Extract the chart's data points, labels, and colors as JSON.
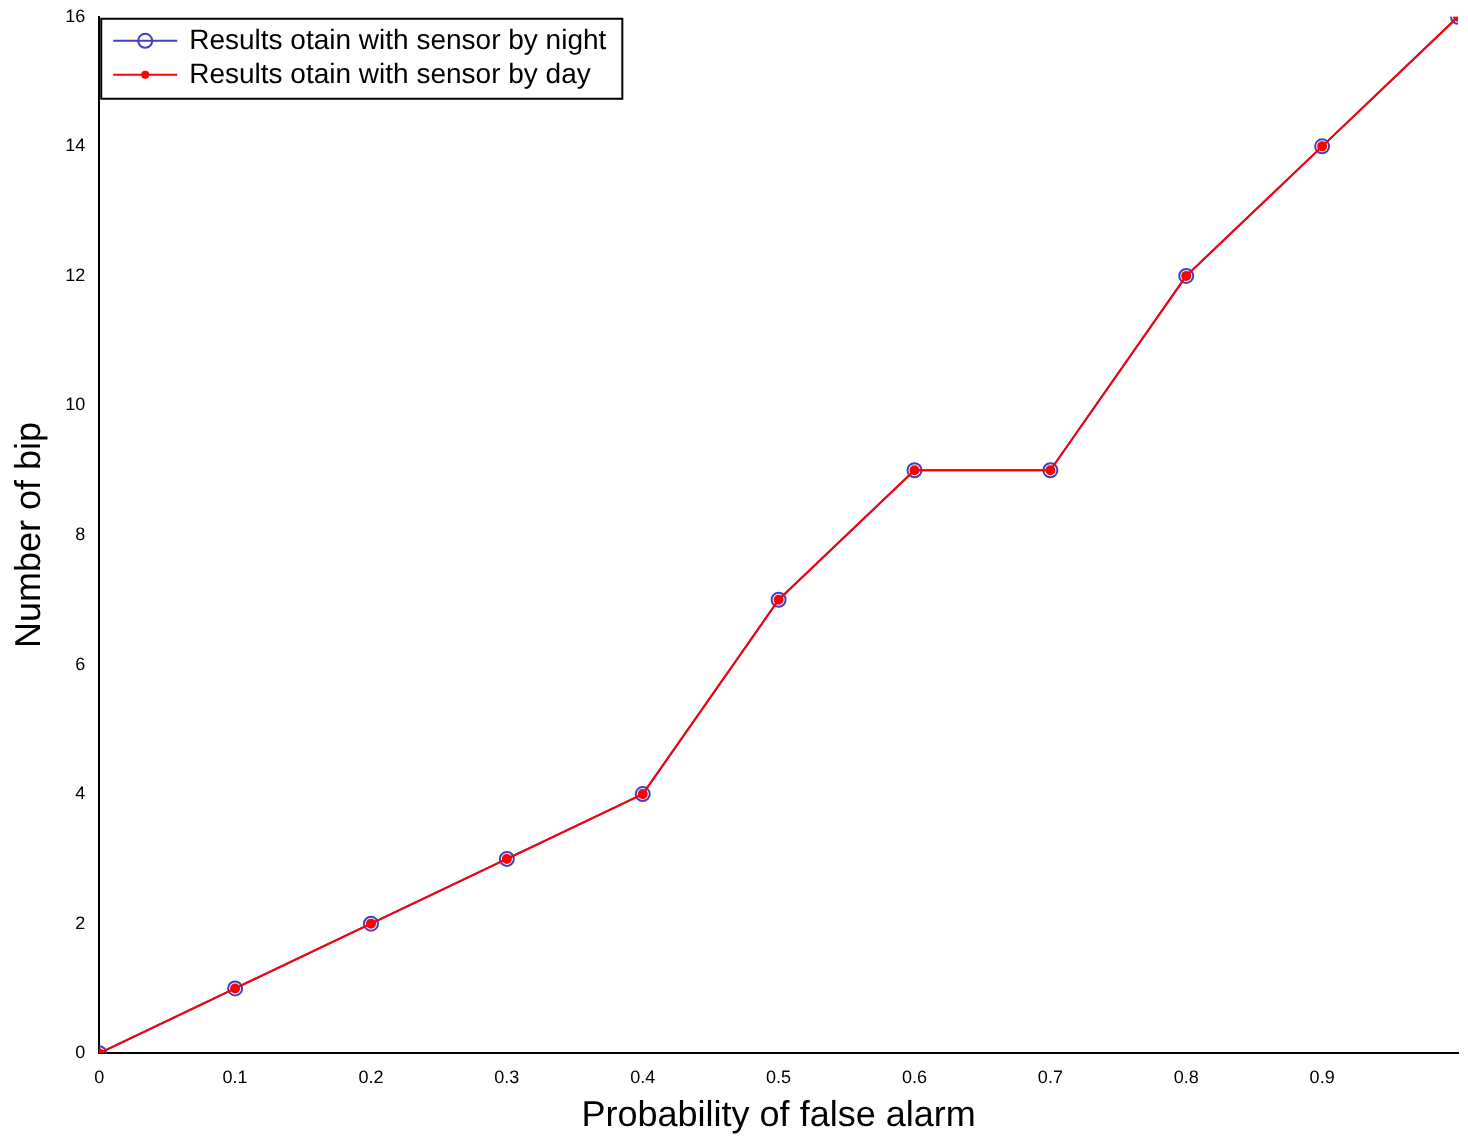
{
  "chart_data": {
    "type": "line",
    "xlabel": "Probability of false alarm",
    "ylabel": "Number of bip",
    "x": [
      0,
      0.1,
      0.2,
      0.3,
      0.4,
      0.5,
      0.6,
      0.7,
      0.8,
      0.9,
      1
    ],
    "series": [
      {
        "name": "Results otain with sensor by night",
        "color": "#4040c0",
        "marker": "circle",
        "values": [
          0,
          1,
          2,
          3,
          4,
          7,
          9,
          9,
          12,
          14,
          16
        ]
      },
      {
        "name": "Results otain with sensor by day",
        "color": "#ff0000",
        "marker": "circle",
        "values": [
          0,
          1,
          2,
          3,
          4,
          7,
          9,
          9,
          12,
          14,
          16
        ]
      }
    ],
    "xlim": [
      0,
      1
    ],
    "xticks": [
      0,
      0.1,
      0.2,
      0.3,
      0.4,
      0.5,
      0.6,
      0.7,
      0.8,
      0.9
    ],
    "ylim": [
      0,
      16
    ],
    "yticks": [
      0,
      2,
      4,
      6,
      8,
      10,
      12,
      14,
      16
    ],
    "grid": false,
    "legend": "top left"
  }
}
